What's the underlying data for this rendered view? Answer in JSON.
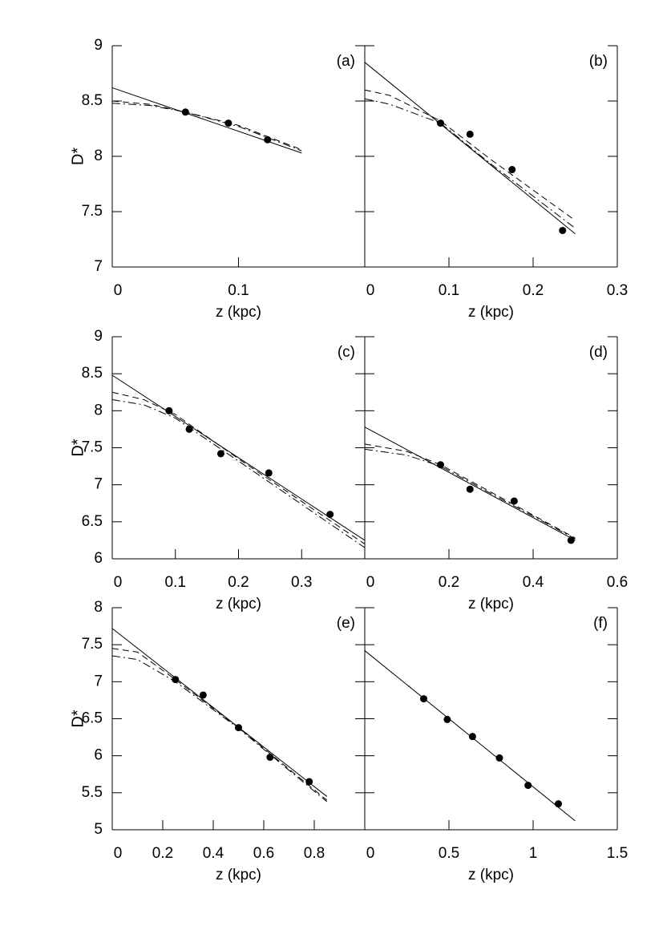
{
  "chart_data": [
    {
      "type": "line",
      "annotation": "(a)",
      "x_label": "z (kpc)",
      "y_label": "D*",
      "xlim": [
        0,
        0.2
      ],
      "xticks": [
        0,
        0.1
      ],
      "ylim": [
        7,
        9
      ],
      "yticks": [
        7,
        7.5,
        8,
        8.5,
        9
      ],
      "series": [
        {
          "style": "markers",
          "color": "#000",
          "x": [
            0.058,
            0.092,
            0.123
          ],
          "values": [
            8.4,
            8.3,
            8.15
          ]
        },
        {
          "style": "solid",
          "color": "#000",
          "x": [
            0,
            0.15
          ],
          "values": [
            8.62,
            8.03
          ]
        },
        {
          "style": "dashed",
          "color": "#000",
          "x": [
            0,
            0.03,
            0.058,
            0.1,
            0.15
          ],
          "values": [
            8.5,
            8.47,
            8.4,
            8.28,
            8.06
          ]
        },
        {
          "style": "dashdot",
          "color": "#000",
          "x": [
            0,
            0.03,
            0.058,
            0.1,
            0.15
          ],
          "values": [
            8.48,
            8.46,
            8.4,
            8.27,
            8.05
          ]
        }
      ]
    },
    {
      "type": "line",
      "annotation": "(b)",
      "x_label": "z (kpc)",
      "xlim": [
        0,
        0.3
      ],
      "xticks": [
        0,
        0.1,
        0.2,
        0.3
      ],
      "ylim": [
        7,
        9
      ],
      "yticks": [
        7,
        7.5,
        8,
        8.5,
        9
      ],
      "series": [
        {
          "style": "markers",
          "color": "#000",
          "x": [
            0.09,
            0.125,
            0.175,
            0.235
          ],
          "values": [
            8.3,
            8.2,
            7.88,
            7.33
          ]
        },
        {
          "style": "solid",
          "color": "#000",
          "x": [
            0,
            0.25
          ],
          "values": [
            8.85,
            7.3
          ]
        },
        {
          "style": "dashed",
          "color": "#000",
          "x": [
            0,
            0.03,
            0.09,
            0.15,
            0.25
          ],
          "values": [
            8.6,
            8.55,
            8.32,
            7.97,
            7.42
          ]
        },
        {
          "style": "dashdot",
          "color": "#000",
          "x": [
            0,
            0.03,
            0.09,
            0.15,
            0.25
          ],
          "values": [
            8.52,
            8.47,
            8.3,
            7.93,
            7.35
          ]
        }
      ]
    },
    {
      "type": "line",
      "annotation": "(c)",
      "x_label": "z (kpc)",
      "y_label": "D*",
      "xlim": [
        0,
        0.4
      ],
      "xticks": [
        0,
        0.1,
        0.2,
        0.3
      ],
      "ylim": [
        6,
        9
      ],
      "yticks": [
        6,
        6.5,
        7,
        7.5,
        8,
        8.5,
        9
      ],
      "series": [
        {
          "style": "markers",
          "color": "#000",
          "x": [
            0.09,
            0.122,
            0.172,
            0.248,
            0.345
          ],
          "values": [
            8.0,
            7.75,
            7.42,
            7.16,
            6.6
          ]
        },
        {
          "style": "solid",
          "color": "#000",
          "x": [
            0,
            0.4
          ],
          "values": [
            8.48,
            6.25
          ]
        },
        {
          "style": "dashed",
          "color": "#000",
          "x": [
            0,
            0.05,
            0.1,
            0.2,
            0.4
          ],
          "values": [
            8.25,
            8.15,
            7.95,
            7.35,
            6.2
          ]
        },
        {
          "style": "dashdot",
          "color": "#000",
          "x": [
            0,
            0.05,
            0.1,
            0.2,
            0.4
          ],
          "values": [
            8.15,
            8.08,
            7.9,
            7.32,
            6.15
          ]
        }
      ]
    },
    {
      "type": "line",
      "annotation": "(d)",
      "x_label": "z (kpc)",
      "xlim": [
        0,
        0.6
      ],
      "xticks": [
        0,
        0.2,
        0.4,
        0.6
      ],
      "ylim": [
        6,
        9
      ],
      "yticks": [
        6,
        6.5,
        7,
        7.5,
        8,
        8.5,
        9
      ],
      "series": [
        {
          "style": "markers",
          "color": "#000",
          "x": [
            0.18,
            0.25,
            0.355,
            0.49
          ],
          "values": [
            7.27,
            6.94,
            6.78,
            6.25
          ]
        },
        {
          "style": "solid",
          "color": "#000",
          "x": [
            0,
            0.5
          ],
          "values": [
            7.78,
            6.25
          ]
        },
        {
          "style": "dashed",
          "color": "#000",
          "x": [
            0,
            0.1,
            0.18,
            0.3,
            0.5
          ],
          "values": [
            7.55,
            7.45,
            7.27,
            6.9,
            6.28
          ]
        },
        {
          "style": "dashdot",
          "color": "#000",
          "x": [
            0,
            0.1,
            0.18,
            0.3,
            0.5
          ],
          "values": [
            7.48,
            7.4,
            7.25,
            6.88,
            6.27
          ]
        }
      ]
    },
    {
      "type": "line",
      "annotation": "(e)",
      "x_label": "z (kpc)",
      "y_label": "D*",
      "xlim": [
        0,
        1
      ],
      "xticks": [
        0,
        0.2,
        0.4,
        0.6,
        0.8
      ],
      "ylim": [
        5,
        8
      ],
      "yticks": [
        5,
        5.5,
        6,
        6.5,
        7,
        7.5,
        8
      ],
      "series": [
        {
          "style": "markers",
          "color": "#000",
          "x": [
            0.25,
            0.36,
            0.5,
            0.625,
            0.78
          ],
          "values": [
            7.03,
            6.82,
            6.38,
            5.98,
            5.65
          ]
        },
        {
          "style": "solid",
          "color": "#000",
          "x": [
            0,
            0.85
          ],
          "values": [
            7.72,
            5.45
          ]
        },
        {
          "style": "dashed",
          "color": "#000",
          "x": [
            0,
            0.1,
            0.25,
            0.5,
            0.85
          ],
          "values": [
            7.45,
            7.4,
            7.03,
            6.38,
            5.4
          ]
        },
        {
          "style": "dashdot",
          "color": "#000",
          "x": [
            0,
            0.1,
            0.25,
            0.5,
            0.85
          ],
          "values": [
            7.35,
            7.3,
            7.0,
            6.37,
            5.38
          ]
        }
      ]
    },
    {
      "type": "line",
      "annotation": "(f)",
      "x_label": "z (kpc)",
      "xlim": [
        0,
        1.5
      ],
      "xticks": [
        0,
        0.5,
        1,
        1.5
      ],
      "ylim": [
        5,
        8
      ],
      "yticks": [
        5,
        5.5,
        6,
        6.5,
        7,
        7.5,
        8
      ],
      "series": [
        {
          "style": "markers",
          "color": "#000",
          "x": [
            0.35,
            0.49,
            0.64,
            0.8,
            0.97,
            1.15
          ],
          "values": [
            6.77,
            6.49,
            6.26,
            5.97,
            5.6,
            5.35
          ]
        },
        {
          "style": "solid",
          "color": "#000",
          "x": [
            0,
            1.25
          ],
          "values": [
            7.42,
            5.12
          ]
        }
      ]
    }
  ]
}
